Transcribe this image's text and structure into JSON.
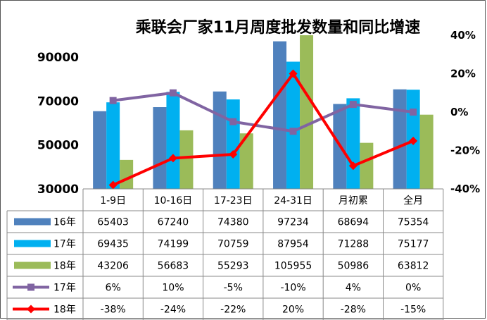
{
  "chart_data": {
    "type": "bar",
    "title": "乘联会厂家11月周度批发数量和同比增速",
    "categories": [
      "1-9日",
      "10-16日",
      "17-23日",
      "24-31日",
      "月初累",
      "全月"
    ],
    "series": [
      {
        "name": "16年",
        "kind": "bar",
        "color": "#4f81bd",
        "values": [
          65403,
          67240,
          74380,
          97234,
          68694,
          75354
        ]
      },
      {
        "name": "17年",
        "kind": "bar",
        "color": "#00b0f0",
        "values": [
          69435,
          74199,
          70759,
          87954,
          71288,
          75177
        ]
      },
      {
        "name": "18年",
        "kind": "bar",
        "color": "#9bbb59",
        "values": [
          43206,
          56683,
          55293,
          105955,
          50986,
          63812
        ]
      },
      {
        "name": "17年",
        "kind": "line",
        "axis": "right",
        "color": "#8064a2",
        "values": [
          6,
          10,
          -5,
          -10,
          4,
          0
        ],
        "labels": [
          "6%",
          "10%",
          "-5%",
          "-10%",
          "4%",
          "0%"
        ]
      },
      {
        "name": "18年",
        "kind": "line",
        "axis": "right",
        "color": "#ff0000",
        "values": [
          -38,
          -24,
          -22,
          20,
          -28,
          -15
        ],
        "labels": [
          "-38%",
          "-24%",
          "-22%",
          "20%",
          "-28%",
          "-15%"
        ]
      }
    ],
    "y_left": {
      "min": 30000,
      "max": 100000,
      "ticks": [
        30000,
        50000,
        70000,
        90000
      ],
      "tick_labels": [
        "30000",
        "50000",
        "70000",
        "90000"
      ]
    },
    "y_right": {
      "min": -40,
      "max": 40,
      "ticks": [
        -40,
        -20,
        0,
        20,
        40
      ],
      "tick_labels": [
        "-40%",
        "-20%",
        "0%",
        "20%",
        "40%"
      ]
    },
    "legend": "data-table"
  }
}
